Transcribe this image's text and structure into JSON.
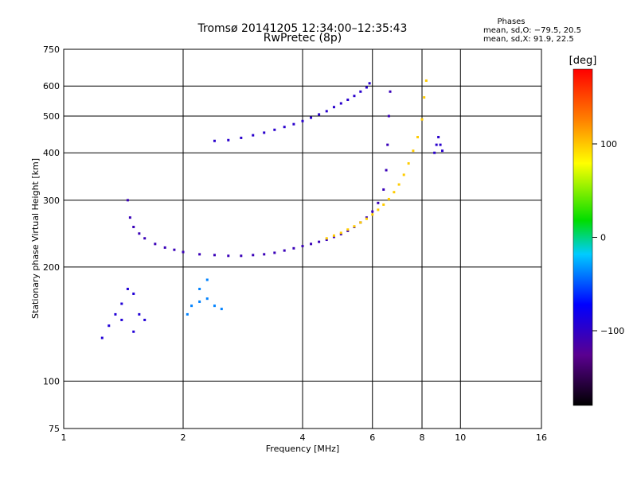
{
  "chart_data": {
    "type": "scatter",
    "title": "Tromsø 20141205 12:34:00–12:35:43",
    "subtitle": "RwPretec (8p)",
    "xlabel": "Frequency [MHz]",
    "ylabel": "Stationary phase Virtual Height [km]",
    "x_scale": "log2",
    "y_scale": "log",
    "xlim": [
      1,
      16
    ],
    "ylim": [
      75,
      750
    ],
    "x_ticks": [
      1,
      2,
      4,
      6,
      8,
      10,
      16
    ],
    "x_tick_labels": [
      "1",
      "2",
      "4",
      "6",
      "8",
      "10",
      "16"
    ],
    "y_ticks": [
      75,
      100,
      200,
      300,
      400,
      500,
      600,
      750
    ],
    "y_tick_labels": [
      "75",
      "100",
      "200",
      "300",
      "400",
      "500",
      "600",
      "750"
    ],
    "grid": true,
    "phase_info": {
      "heading": "Phases",
      "line_o": "mean, sd,O: −79.5, 20.5",
      "line_x": "mean, sd,X:  91.9, 22.5"
    },
    "colorbar": {
      "label": "[deg]",
      "range": [
        -180,
        180
      ],
      "ticks": [
        100,
        0,
        -100
      ],
      "tick_labels": [
        "100",
        "0",
        "−100"
      ]
    },
    "series": [
      {
        "trace": "lower_F_trace",
        "phase_deg": -110,
        "points": [
          [
            1.45,
            300
          ],
          [
            1.47,
            270
          ],
          [
            1.5,
            255
          ],
          [
            1.55,
            245
          ],
          [
            1.6,
            238
          ],
          [
            1.7,
            230
          ],
          [
            1.8,
            225
          ],
          [
            1.9,
            222
          ],
          [
            2.0,
            219
          ],
          [
            2.2,
            216
          ],
          [
            2.4,
            215
          ],
          [
            2.6,
            214
          ],
          [
            2.8,
            214
          ],
          [
            3.0,
            215
          ],
          [
            3.2,
            216
          ],
          [
            3.4,
            218
          ],
          [
            3.6,
            221
          ],
          [
            3.8,
            224
          ],
          [
            4.0,
            227
          ],
          [
            4.2,
            230
          ],
          [
            4.4,
            233
          ],
          [
            4.6,
            236
          ],
          [
            4.8,
            240
          ],
          [
            5.0,
            244
          ],
          [
            5.2,
            249
          ],
          [
            5.4,
            255
          ],
          [
            5.6,
            262
          ],
          [
            5.8,
            270
          ],
          [
            6.0,
            280
          ],
          [
            6.2,
            295
          ],
          [
            6.4,
            320
          ],
          [
            6.5,
            360
          ],
          [
            6.55,
            420
          ],
          [
            6.6,
            500
          ],
          [
            6.65,
            580
          ]
        ]
      },
      {
        "trace": "upper_trace",
        "phase_deg": -100,
        "points": [
          [
            2.4,
            430
          ],
          [
            2.6,
            432
          ],
          [
            2.8,
            438
          ],
          [
            3.0,
            445
          ],
          [
            3.2,
            452
          ],
          [
            3.4,
            460
          ],
          [
            3.6,
            468
          ],
          [
            3.8,
            476
          ],
          [
            4.0,
            485
          ],
          [
            4.2,
            495
          ],
          [
            4.4,
            505
          ],
          [
            4.6,
            515
          ],
          [
            4.8,
            528
          ],
          [
            5.0,
            540
          ],
          [
            5.2,
            552
          ],
          [
            5.4,
            565
          ],
          [
            5.6,
            580
          ],
          [
            5.8,
            595
          ],
          [
            5.9,
            610
          ]
        ]
      },
      {
        "trace": "x_mode_trace",
        "phase_deg": 100,
        "points": [
          [
            4.6,
            238
          ],
          [
            4.8,
            242
          ],
          [
            5.0,
            246
          ],
          [
            5.2,
            251
          ],
          [
            5.4,
            256
          ],
          [
            5.6,
            262
          ],
          [
            5.8,
            268
          ],
          [
            6.0,
            275
          ],
          [
            6.2,
            283
          ],
          [
            6.4,
            292
          ],
          [
            6.6,
            302
          ],
          [
            6.8,
            315
          ],
          [
            7.0,
            330
          ],
          [
            7.2,
            350
          ],
          [
            7.4,
            375
          ],
          [
            7.6,
            405
          ],
          [
            7.8,
            440
          ],
          [
            8.0,
            490
          ],
          [
            8.1,
            560
          ],
          [
            8.2,
            620
          ]
        ]
      },
      {
        "trace": "low_cluster_1",
        "phase_deg": -95,
        "points": [
          [
            1.25,
            130
          ],
          [
            1.3,
            140
          ],
          [
            1.35,
            150
          ],
          [
            1.4,
            160
          ],
          [
            1.45,
            175
          ],
          [
            1.5,
            170
          ],
          [
            1.55,
            150
          ],
          [
            1.6,
            145
          ],
          [
            1.5,
            135
          ],
          [
            1.4,
            145
          ]
        ]
      },
      {
        "trace": "low_cluster_2",
        "phase_deg": -40,
        "points": [
          [
            2.05,
            150
          ],
          [
            2.1,
            158
          ],
          [
            2.2,
            162
          ],
          [
            2.3,
            165
          ],
          [
            2.4,
            158
          ],
          [
            2.5,
            155
          ],
          [
            2.2,
            175
          ],
          [
            2.3,
            185
          ]
        ]
      },
      {
        "trace": "near_cutoff",
        "phase_deg": -100,
        "points": [
          [
            8.6,
            400
          ],
          [
            8.7,
            420
          ],
          [
            8.8,
            440
          ],
          [
            8.9,
            420
          ],
          [
            9.0,
            405
          ]
        ]
      }
    ]
  }
}
